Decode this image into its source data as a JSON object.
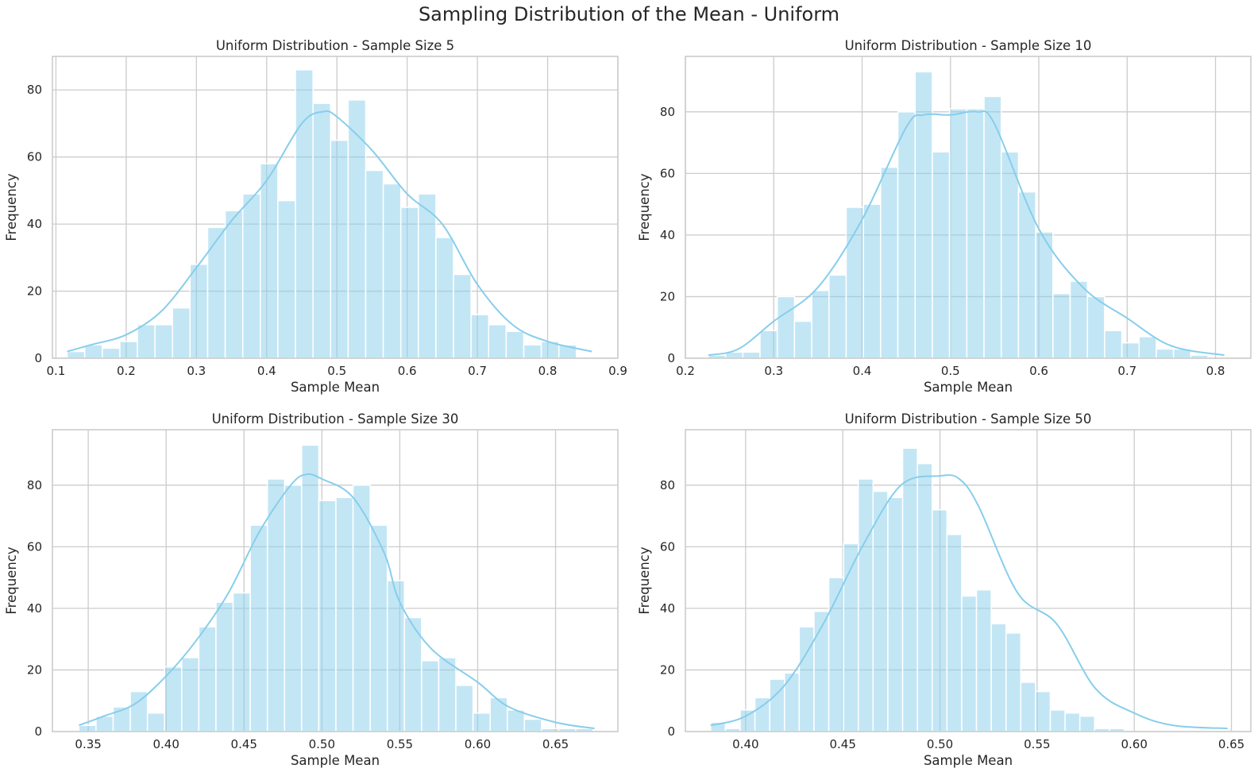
{
  "figure": {
    "title": "Sampling Distribution of the Mean - Uniform",
    "bar_color": "#87ceeb",
    "kde_color": "#87ceeb",
    "grid_color": "#cccccc",
    "background": "#ffffff"
  },
  "chart_data": [
    {
      "type": "bar",
      "title": "Uniform Distribution - Sample Size 5",
      "xlabel": "Sample Mean",
      "ylabel": "Frequency",
      "xlim": [
        0.095,
        0.9
      ],
      "ylim": [
        0,
        90
      ],
      "xticks": [
        0.1,
        0.2,
        0.3,
        0.4,
        0.5,
        0.6,
        0.7,
        0.8,
        0.9
      ],
      "xtick_labels": [
        "0.1",
        "0.2",
        "0.3",
        "0.4",
        "0.5",
        "0.6",
        "0.7",
        "0.8",
        "0.9"
      ],
      "yticks": [
        0,
        20,
        40,
        60,
        80
      ],
      "grid": true,
      "bin_start": 0.116,
      "bin_width": 0.025,
      "values": [
        2,
        4,
        3,
        5,
        10,
        10,
        15,
        28,
        39,
        44,
        49,
        58,
        47,
        86,
        76,
        65,
        77,
        56,
        52,
        45,
        49,
        36,
        25,
        13,
        10,
        8,
        4,
        5,
        4,
        0
      ],
      "kde": {
        "x": [
          0.116,
          0.15,
          0.2,
          0.25,
          0.3,
          0.35,
          0.4,
          0.45,
          0.48,
          0.5,
          0.55,
          0.6,
          0.65,
          0.7,
          0.75,
          0.8,
          0.863
        ],
        "y": [
          2,
          4,
          7,
          14,
          27,
          41,
          53,
          70,
          73.5,
          72,
          62,
          49,
          40,
          22,
          10,
          5,
          2
        ]
      }
    },
    {
      "type": "bar",
      "title": "Uniform Distribution - Sample Size 10",
      "xlabel": "Sample Mean",
      "ylabel": "Frequency",
      "xlim": [
        0.2,
        0.84
      ],
      "ylim": [
        0,
        98
      ],
      "xticks": [
        0.2,
        0.3,
        0.4,
        0.5,
        0.6,
        0.7,
        0.8
      ],
      "xtick_labels": [
        "0.2",
        "0.3",
        "0.4",
        "0.5",
        "0.6",
        "0.7",
        "0.8"
      ],
      "yticks": [
        0,
        20,
        40,
        60,
        80
      ],
      "grid": true,
      "bin_start": 0.226,
      "bin_width": 0.0195,
      "values": [
        1,
        2,
        2,
        9,
        20,
        12,
        22,
        27,
        49,
        50,
        62,
        80,
        93,
        67,
        81,
        81,
        85,
        67,
        54,
        41,
        21,
        25,
        20,
        9,
        5,
        7,
        3,
        3,
        1,
        0
      ],
      "kde": {
        "x": [
          0.226,
          0.26,
          0.3,
          0.35,
          0.4,
          0.45,
          0.47,
          0.5,
          0.53,
          0.55,
          0.6,
          0.65,
          0.7,
          0.75,
          0.81
        ],
        "y": [
          1,
          3,
          12,
          23,
          45,
          75,
          79,
          79,
          80,
          76,
          42,
          23,
          13,
          4,
          1
        ]
      }
    },
    {
      "type": "bar",
      "title": "Uniform Distribution - Sample Size 30",
      "xlabel": "Sample Mean",
      "ylabel": "Frequency",
      "xlim": [
        0.327,
        0.69
      ],
      "ylim": [
        0,
        98
      ],
      "xticks": [
        0.35,
        0.4,
        0.45,
        0.5,
        0.55,
        0.6,
        0.65
      ],
      "xtick_labels": [
        "0.35",
        "0.40",
        "0.45",
        "0.50",
        "0.55",
        "0.60",
        "0.65"
      ],
      "yticks": [
        0,
        20,
        40,
        60,
        80
      ],
      "grid": true,
      "bin_start": 0.344,
      "bin_width": 0.011,
      "values": [
        2,
        5,
        8,
        13,
        6,
        21,
        24,
        34,
        42,
        45,
        67,
        82,
        80,
        93,
        75,
        76,
        80,
        67,
        49,
        37,
        23,
        24,
        15,
        6,
        11,
        7,
        4,
        1,
        1,
        1
      ],
      "kde": {
        "x": [
          0.344,
          0.36,
          0.38,
          0.4,
          0.42,
          0.44,
          0.46,
          0.48,
          0.49,
          0.5,
          0.52,
          0.54,
          0.55,
          0.57,
          0.6,
          0.62,
          0.65,
          0.675
        ],
        "y": [
          2,
          5,
          9,
          18,
          30,
          45,
          65,
          80,
          83.5,
          82,
          76,
          58,
          42,
          27,
          16,
          8,
          3,
          1
        ]
      }
    },
    {
      "type": "bar",
      "title": "Uniform Distribution - Sample Size 50",
      "xlabel": "Sample Mean",
      "ylabel": "Frequency",
      "xlim": [
        0.369,
        0.66
      ],
      "ylim": [
        0,
        98
      ],
      "xticks": [
        0.4,
        0.45,
        0.5,
        0.55,
        0.6,
        0.65
      ],
      "xtick_labels": [
        "0.40",
        "0.45",
        "0.50",
        "0.55",
        "0.60",
        "0.65"
      ],
      "yticks": [
        0,
        20,
        40,
        60,
        80
      ],
      "grid": true,
      "bin_start": 0.382,
      "bin_width": 0.0076,
      "values": [
        3,
        1,
        7,
        11,
        17,
        19,
        34,
        39,
        50,
        61,
        82,
        78,
        76,
        92,
        87,
        72,
        64,
        44,
        46,
        35,
        32,
        16,
        13,
        7,
        6,
        5,
        1,
        1,
        0,
        0
      ],
      "kde": {
        "x": [
          0.382,
          0.4,
          0.42,
          0.44,
          0.46,
          0.48,
          0.5,
          0.51,
          0.52,
          0.54,
          0.56,
          0.58,
          0.6,
          0.62,
          0.648
        ],
        "y": [
          2,
          5,
          15,
          35,
          60,
          80,
          83,
          82,
          73,
          45,
          35,
          14,
          6,
          2,
          1
        ]
      }
    }
  ]
}
